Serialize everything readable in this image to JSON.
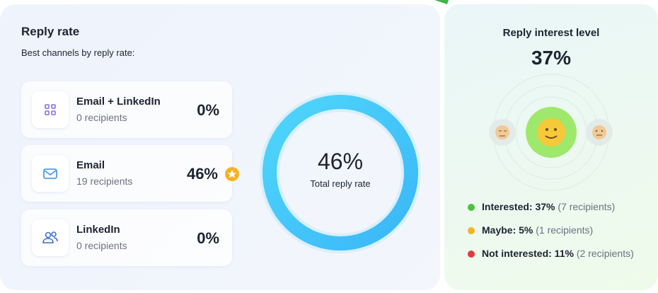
{
  "reply_rate": {
    "title": "Reply rate",
    "subtitle": "Best channels by reply rate:",
    "channels": [
      {
        "name": "Email + LinkedIn",
        "recipients": "0 recipients",
        "rate": "0%"
      },
      {
        "name": "Email",
        "recipients": "19 recipients",
        "rate": "46%"
      },
      {
        "name": "LinkedIn",
        "recipients": "0 recipients",
        "rate": "0%"
      }
    ],
    "total": {
      "value": "46%",
      "label": "Total reply rate"
    }
  },
  "interest": {
    "title": "Reply interest level",
    "value": "37%",
    "legend": [
      {
        "label": "Interested: 37%",
        "detail": "(7 recipients)",
        "color": "#4cc13c"
      },
      {
        "label": "Maybe: 5%",
        "detail": "(1 recipients)",
        "color": "#f5b323"
      },
      {
        "label": "Not interested: 11%",
        "detail": "(2 recipients)",
        "color": "#e5383b"
      }
    ]
  }
}
